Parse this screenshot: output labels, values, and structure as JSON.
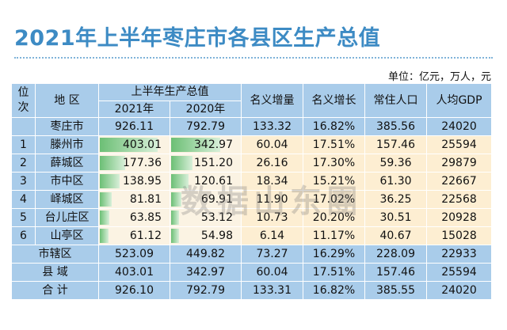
{
  "title": "2021年上半年枣庄市各县区生产总值",
  "unit": "单位：亿元，万人，元",
  "watermark": "数据山东團",
  "colors": {
    "title": "#3d8bc4",
    "header_bg": "#a9ccea",
    "row_bg": "#fdeed2",
    "bar": "#6cbf75"
  },
  "headers": {
    "rank": "位次",
    "region": "地 区",
    "gdp_group": "上半年生产总值",
    "y2021": "2021年",
    "y2020": "2020年",
    "increase": "名义增量",
    "growth": "名义增长",
    "population": "常住人口",
    "per_capita": "人均GDP"
  },
  "city_row": {
    "region": "枣庄市",
    "y2021": "926.11",
    "y2020": "792.79",
    "increase": "133.32",
    "growth": "16.82%",
    "population": "385.56",
    "per_capita": "24020"
  },
  "counties": [
    {
      "rank": "1",
      "region": "滕州市",
      "y2021": "403.01",
      "y2020": "342.97",
      "increase": "60.04",
      "growth": "17.51%",
      "population": "157.46",
      "per_capita": "25594"
    },
    {
      "rank": "2",
      "region": "薛城区",
      "y2021": "177.36",
      "y2020": "151.20",
      "increase": "26.16",
      "growth": "17.30%",
      "population": "59.36",
      "per_capita": "29879"
    },
    {
      "rank": "3",
      "region": "市中区",
      "y2021": "138.95",
      "y2020": "120.61",
      "increase": "18.34",
      "growth": "15.21%",
      "population": "61.30",
      "per_capita": "22667"
    },
    {
      "rank": "4",
      "region": "峄城区",
      "y2021": "81.81",
      "y2020": "69.91",
      "increase": "11.90",
      "growth": "17.02%",
      "population": "36.25",
      "per_capita": "22568"
    },
    {
      "rank": "5",
      "region": "台儿庄区",
      "y2021": "63.85",
      "y2020": "53.12",
      "increase": "10.73",
      "growth": "20.20%",
      "population": "30.51",
      "per_capita": "20928"
    },
    {
      "rank": "6",
      "region": "山亭区",
      "y2021": "61.12",
      "y2020": "54.98",
      "increase": "6.14",
      "growth": "11.17%",
      "population": "40.67",
      "per_capita": "15028"
    }
  ],
  "summary_rows": [
    {
      "region": "市辖区",
      "y2021": "523.09",
      "y2020": "449.82",
      "increase": "73.27",
      "growth": "16.29%",
      "population": "228.09",
      "per_capita": "22933"
    },
    {
      "region": "县 域",
      "y2021": "403.01",
      "y2020": "342.97",
      "increase": "60.04",
      "growth": "17.51%",
      "population": "157.46",
      "per_capita": "25594"
    },
    {
      "region": "合 计",
      "y2021": "926.10",
      "y2020": "792.79",
      "increase": "133.31",
      "growth": "16.82%",
      "population": "385.55",
      "per_capita": "24020"
    }
  ]
}
